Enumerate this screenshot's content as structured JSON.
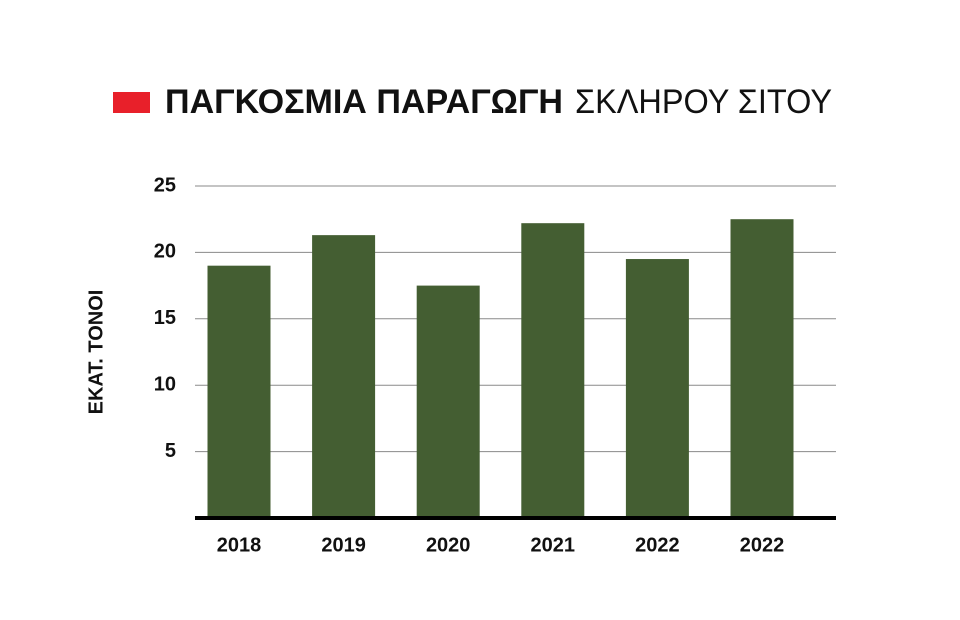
{
  "chart_data": {
    "type": "bar",
    "title": [
      "ΠΑΓΚΟΣΜΙΑ ΠΑΡΑΓΩΓΗ",
      "ΣΚΛΗΡΟΥ ΣΙΤΟΥ"
    ],
    "y_label": "ΕΚΑΤ. ΤΟΝΟΙ",
    "categories": [
      "2018",
      "2019",
      "2020",
      "2021",
      "2022",
      "2022"
    ],
    "values": [
      19,
      21.3,
      17.5,
      22.2,
      19.5,
      22.5
    ],
    "color": "#445e32",
    "ylim": [
      0,
      25
    ],
    "yticks": [
      5,
      10,
      15,
      20,
      25
    ],
    "grid": true
  }
}
